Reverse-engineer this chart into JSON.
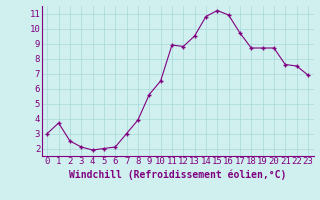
{
  "x": [
    0,
    1,
    2,
    3,
    4,
    5,
    6,
    7,
    8,
    9,
    10,
    11,
    12,
    13,
    14,
    15,
    16,
    17,
    18,
    19,
    20,
    21,
    22,
    23
  ],
  "y": [
    3.0,
    3.7,
    2.5,
    2.1,
    1.9,
    2.0,
    2.1,
    3.0,
    3.9,
    5.6,
    6.5,
    8.9,
    8.8,
    9.5,
    10.8,
    11.2,
    10.9,
    9.7,
    8.7,
    8.7,
    8.7,
    7.6,
    7.5,
    6.9
  ],
  "line_color": "#800080",
  "marker": "+",
  "marker_size": 3,
  "marker_linewidth": 1.0,
  "bg_color": "#d0f0f0",
  "grid_color": "#a8d8d8",
  "xlabel": "Windchill (Refroidissement éolien,°C)",
  "xlim_min": -0.5,
  "xlim_max": 23.5,
  "ylim_min": 1.5,
  "ylim_max": 11.5,
  "yticks": [
    2,
    3,
    4,
    5,
    6,
    7,
    8,
    9,
    10,
    11
  ],
  "xticks": [
    0,
    1,
    2,
    3,
    4,
    5,
    6,
    7,
    8,
    9,
    10,
    11,
    12,
    13,
    14,
    15,
    16,
    17,
    18,
    19,
    20,
    21,
    22,
    23
  ],
  "spine_color": "#800080",
  "label_color": "#800080",
  "tick_fontsize": 6.5,
  "xlabel_fontsize": 7.0,
  "linewidth": 0.8
}
